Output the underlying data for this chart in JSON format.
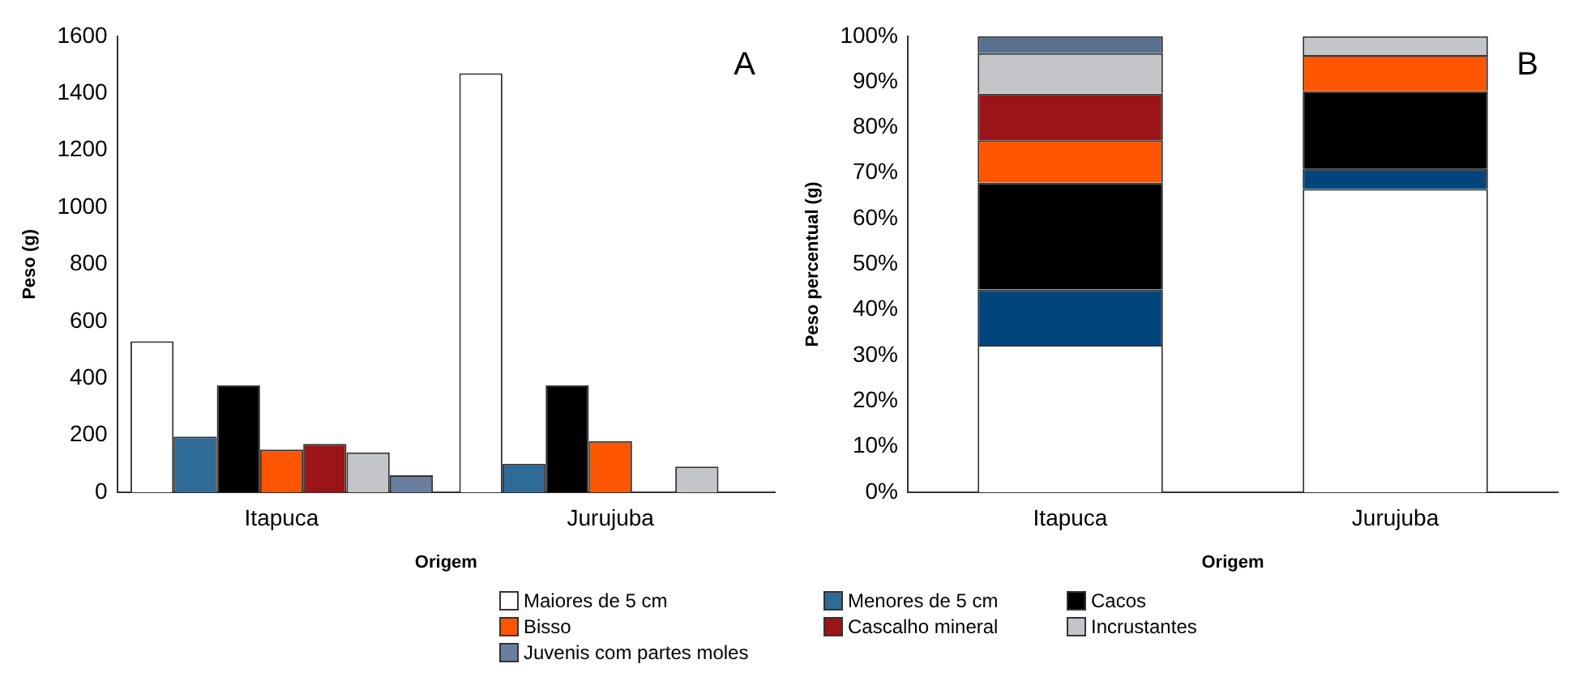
{
  "chart_data": [
    {
      "type": "bar",
      "ylabel": "Peso (g)",
      "xlabel": "Origem",
      "annotations": [
        "A"
      ],
      "categories": [
        "Itapuca",
        "Jurujuba"
      ],
      "ylim": [
        0,
        1600
      ],
      "yticks": [
        0,
        200,
        400,
        600,
        800,
        1000,
        1200,
        1400,
        1600
      ],
      "grid": false,
      "legend": "bottom",
      "series": [
        {
          "name": "Maiores de 5 cm",
          "color": "#ffffff",
          "values": [
            530,
            1470
          ]
        },
        {
          "name": "Menores de 5 cm",
          "color": "#2e6b96",
          "values": [
            195,
            100
          ]
        },
        {
          "name": "Cacos",
          "color": "#000000",
          "values": [
            375,
            375
          ]
        },
        {
          "name": "Bisso",
          "color": "#ff5500",
          "values": [
            150,
            180
          ]
        },
        {
          "name": "Cascalho mineral",
          "color": "#9b1518",
          "values": [
            170,
            null
          ]
        },
        {
          "name": "Incrustantes",
          "color": "#c4c5c9",
          "values": [
            140,
            90
          ]
        },
        {
          "name": "Juvenis com partes moles",
          "color": "#6a7fa0",
          "values": [
            60,
            null
          ]
        }
      ]
    },
    {
      "type": "bar",
      "stacked": true,
      "ylabel": "Peso percentual (g)",
      "xlabel": "Origem",
      "annotations": [
        "B"
      ],
      "categories": [
        "Itapuca",
        "Jurujuba"
      ],
      "ylim": [
        0,
        100
      ],
      "yticks": [
        {
          "value": 0,
          "label": "0%"
        },
        {
          "value": 10,
          "label": "10%"
        },
        {
          "value": 20,
          "label": "20%"
        },
        {
          "value": 30,
          "label": "30%"
        },
        {
          "value": 40,
          "label": "40%"
        },
        {
          "value": 50,
          "label": "50%"
        },
        {
          "value": 60,
          "label": "60%"
        },
        {
          "value": 70,
          "label": "70%"
        },
        {
          "value": 80,
          "label": "80%"
        },
        {
          "value": 90,
          "label": "90%"
        },
        {
          "value": 100,
          "label": "100%"
        }
      ],
      "grid": false,
      "series": [
        {
          "color": "#ffffff",
          "values": [
            32.3,
            66.5
          ]
        },
        {
          "color": "#00457c",
          "values": [
            12.2,
            4.4
          ]
        },
        {
          "color": "#000000",
          "values": [
            23.4,
            17.1
          ]
        },
        {
          "color": "#ff5500",
          "values": [
            9.3,
            7.9
          ]
        },
        {
          "color": "#9b1518",
          "values": [
            10.2,
            null
          ]
        },
        {
          "color": "#c4c5c9",
          "values": [
            8.9,
            4.1
          ]
        },
        {
          "color": "#5a7090",
          "values": [
            3.7,
            null
          ]
        }
      ]
    }
  ]
}
